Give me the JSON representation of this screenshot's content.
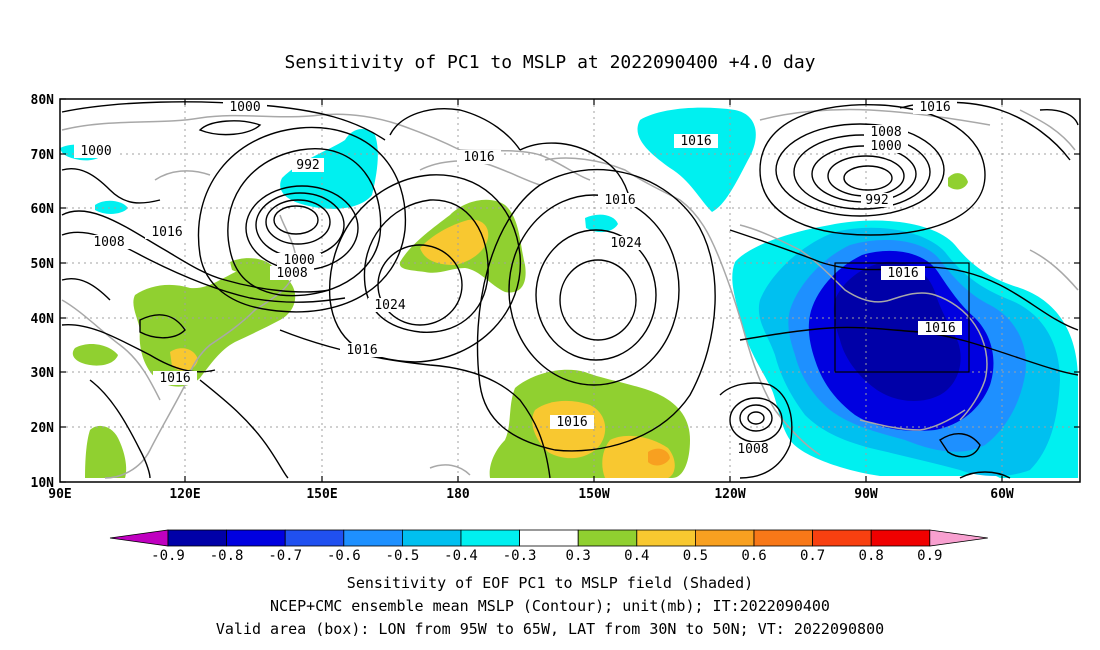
{
  "title": "Sensitivity of PC1 to MSLP at 2022090400 +4.0 day",
  "axes": {
    "lat_labels": [
      "80N",
      "70N",
      "60N",
      "50N",
      "40N",
      "30N",
      "20N",
      "10N"
    ],
    "lon_labels": [
      "90E",
      "120E",
      "150E",
      "180",
      "150W",
      "120W",
      "90W",
      "60W"
    ]
  },
  "contour_labels": [
    {
      "text": "1000"
    },
    {
      "text": "1000"
    },
    {
      "text": "992"
    },
    {
      "text": "1008"
    },
    {
      "text": "1016"
    },
    {
      "text": "1000"
    },
    {
      "text": "1008"
    },
    {
      "text": "1016"
    },
    {
      "text": "1024"
    },
    {
      "text": "1016"
    },
    {
      "text": "1016"
    },
    {
      "text": "1016"
    },
    {
      "text": "1024"
    },
    {
      "text": "1016"
    },
    {
      "text": "1016"
    },
    {
      "text": "1008"
    },
    {
      "text": "1016"
    },
    {
      "text": "1008"
    },
    {
      "text": "1000"
    },
    {
      "text": "992"
    },
    {
      "text": "1016"
    },
    {
      "text": "1016"
    }
  ],
  "colorbar": {
    "colors": [
      "#c000c0",
      "#0000a8",
      "#0000e0",
      "#2050f0",
      "#1e90ff",
      "#00c0f0",
      "#00f0f0",
      "#ffffff",
      "#90d030",
      "#f8c830",
      "#f8a020",
      "#f87818",
      "#f84010",
      "#f00000",
      "#f8a0d0"
    ],
    "labels": [
      "-0.9",
      "-0.8",
      "-0.7",
      "-0.6",
      "-0.5",
      "-0.4",
      "-0.3",
      "0.3",
      "0.4",
      "0.5",
      "0.6",
      "0.7",
      "0.8",
      "0.9"
    ]
  },
  "caption": {
    "line1": "Sensitivity of EOF PC1 to MSLP field (Shaded)",
    "line2": "NCEP+CMC ensemble mean MSLP (Contour); unit(mb); IT:2022090400",
    "line3": "Valid area (box): LON from 95W to 65W, LAT from 30N to 50N; VT: 2022090800"
  },
  "valid_box": {
    "lon_west": "95W",
    "lon_east": "65W",
    "lat_south": "30N",
    "lat_north": "50N"
  }
}
